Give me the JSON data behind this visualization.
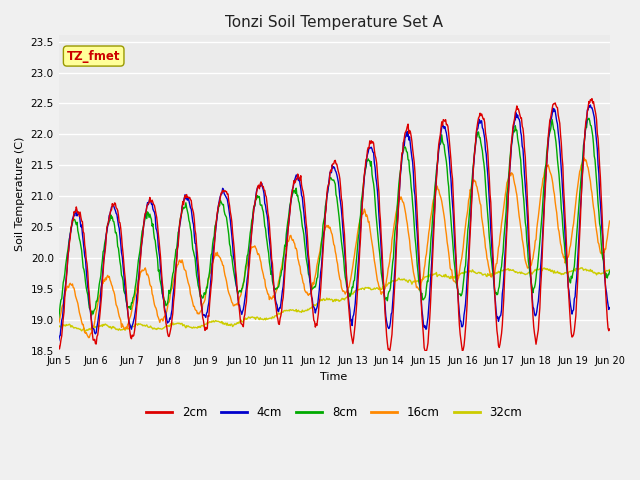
{
  "title": "Tonzi Soil Temperature Set A",
  "xlabel": "Time",
  "ylabel": "Soil Temperature (C)",
  "ylim": [
    18.5,
    23.6
  ],
  "annotation": "TZ_fmet",
  "annotation_color": "#cc0000",
  "annotation_bg": "#ffff99",
  "annotation_edge": "#999900",
  "fig_bg": "#f0f0f0",
  "plot_bg": "#ebebeb",
  "legend_entries": [
    "2cm",
    "4cm",
    "8cm",
    "16cm",
    "32cm"
  ],
  "line_colors": [
    "#dd0000",
    "#0000cc",
    "#00aa00",
    "#ff8800",
    "#cccc00"
  ],
  "x_tick_labels": [
    "Jun 5",
    "Jun 6",
    "Jun 7",
    "Jun 8",
    "Jun 9",
    "Jun 10",
    "Jun 11",
    "Jun 12",
    "Jun 13",
    "Jun 14",
    "Jun 15",
    "Jun 16",
    "Jun 17",
    "Jun 18",
    "Jun 19",
    "Jun 20"
  ],
  "num_points": 720,
  "days": 15
}
